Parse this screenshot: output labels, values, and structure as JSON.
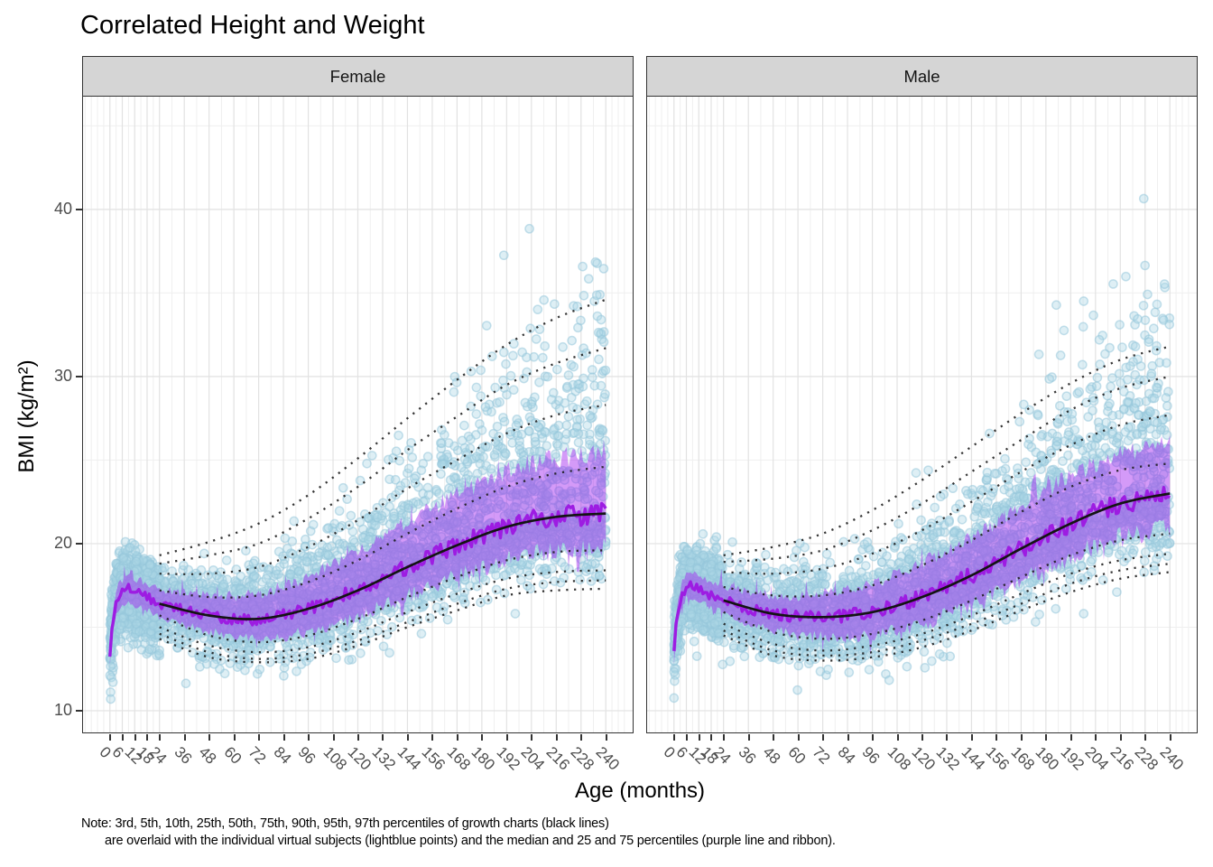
{
  "title": "Correlated Height and Weight",
  "axes": {
    "x_label": "Age (months)",
    "y_label": "BMI (kg/m²)",
    "x_ticks": [
      0,
      6,
      12,
      18,
      24,
      36,
      48,
      60,
      72,
      84,
      96,
      108,
      120,
      132,
      144,
      156,
      168,
      180,
      192,
      204,
      216,
      228,
      240
    ],
    "y_ticks": [
      10,
      20,
      30,
      40
    ]
  },
  "facets": [
    {
      "label": "Female"
    },
    {
      "label": "Male"
    }
  ],
  "note": {
    "line1": "Note: 3rd, 5th, 10th, 25th, 50th, 75th, 90th, 95th, 97th percentiles of growth charts (black lines)",
    "line2": "are overlaid with the individual virtual subjects (lightblue points) and the median and 25 and 75 percentiles (purple line and ribbon)."
  },
  "colors": {
    "scatter_point": "#ADD8E6",
    "ribbon_purple": "#A020F0",
    "median_purple_line": "#9D1CE2",
    "percentile_black": "#1A1A1A",
    "strip_bg": "#D5D5D5",
    "panel_border": "#333333",
    "grid_major": "#E2E2E2",
    "grid_minor": "#EFEFEF",
    "tick_label": "#4D4D4D"
  },
  "chart_data": {
    "type": "scatter",
    "title": "Correlated Height and Weight",
    "xlabel": "Age (months)",
    "ylabel": "BMI (kg/m²)",
    "x_domain": [
      -13,
      253
    ],
    "y_domain": [
      8.7,
      46.75
    ],
    "grid": "on",
    "percentile_ages": [
      24,
      48,
      72,
      96,
      120,
      144,
      168,
      192,
      216,
      240
    ],
    "ribbon_ages": [
      0,
      12,
      24,
      48,
      72,
      96,
      120,
      144,
      168,
      192,
      216,
      240
    ],
    "facets": [
      {
        "name": "Female",
        "growth_chart_percentiles": {
          "P3": [
            14.3,
            13.2,
            12.9,
            13.1,
            13.9,
            15.0,
            16.0,
            16.9,
            17.2,
            17.3
          ],
          "P5": [
            14.6,
            13.5,
            13.1,
            13.4,
            14.2,
            15.3,
            16.4,
            17.3,
            17.7,
            17.8
          ],
          "P10": [
            15.0,
            13.9,
            13.5,
            13.8,
            14.7,
            15.9,
            17.0,
            17.9,
            18.3,
            18.4
          ],
          "P25": [
            15.7,
            14.5,
            14.1,
            14.5,
            15.5,
            16.8,
            18.0,
            19.0,
            19.5,
            19.6
          ],
          "P50": [
            16.4,
            15.7,
            15.5,
            16.1,
            17.2,
            18.6,
            19.9,
            21.0,
            21.6,
            21.8
          ],
          "P75": [
            17.2,
            16.8,
            16.9,
            17.7,
            19.0,
            20.6,
            22.1,
            23.4,
            24.2,
            24.6
          ],
          "P90": [
            18.2,
            18.2,
            18.6,
            19.8,
            21.4,
            23.3,
            25.0,
            26.6,
            27.7,
            28.3
          ],
          "P95": [
            18.8,
            19.3,
            20.0,
            21.5,
            23.4,
            25.6,
            27.6,
            29.5,
            30.8,
            31.7
          ],
          "P97": [
            19.3,
            20.1,
            21.2,
            22.9,
            25.1,
            27.5,
            29.8,
            31.9,
            33.5,
            34.6
          ]
        },
        "data_median_purple": {
          "ages": [
            0,
            1,
            2,
            3,
            4,
            6,
            9,
            12,
            15,
            18,
            24,
            36,
            48,
            60,
            72,
            84,
            96,
            108,
            120,
            132,
            144,
            156,
            168,
            180,
            192,
            204,
            216,
            228,
            240
          ],
          "bmi": [
            13.2,
            14.8,
            15.8,
            16.4,
            16.8,
            17.1,
            17.3,
            17.1,
            16.95,
            16.8,
            16.4,
            16.0,
            15.7,
            15.5,
            15.5,
            15.7,
            16.1,
            16.6,
            17.2,
            17.9,
            18.6,
            19.3,
            19.9,
            20.5,
            21.0,
            21.4,
            21.6,
            21.7,
            21.8
          ]
        },
        "ribbon_halfwidth": {
          "upper": [
            0.6,
            0.8,
            0.9,
            1.2,
            1.5,
            1.9,
            2.3,
            2.7,
            3.0,
            3.3,
            3.5,
            3.6
          ],
          "lower": [
            0.6,
            0.8,
            0.8,
            1.0,
            1.2,
            1.4,
            1.6,
            1.75,
            1.9,
            2.0,
            2.05,
            2.1
          ]
        },
        "scatter_cloud": {
          "n_points": 4200,
          "frac_age_under_24": 0.3,
          "bmi_min": 10.5,
          "envelope_base": 23,
          "envelope_growth_to_240": 23.5,
          "sigma_lower": 1.15,
          "sigma_upper_base": 1.0,
          "sigma_upper_growth": 5.8
        }
      },
      {
        "name": "Male",
        "growth_chart_percentiles": {
          "P3": [
            14.5,
            13.3,
            13.0,
            13.2,
            13.8,
            14.8,
            16.0,
            17.1,
            17.9,
            18.3
          ],
          "P5": [
            14.8,
            13.6,
            13.3,
            13.5,
            14.2,
            15.2,
            16.4,
            17.6,
            18.4,
            18.8
          ],
          "P10": [
            15.2,
            14.0,
            13.6,
            13.9,
            14.6,
            15.7,
            17.0,
            18.2,
            19.0,
            19.4
          ],
          "P25": [
            15.9,
            14.7,
            14.3,
            14.6,
            15.4,
            16.6,
            18.0,
            19.3,
            20.2,
            20.6
          ],
          "P50": [
            16.6,
            15.8,
            15.6,
            15.9,
            16.8,
            18.1,
            19.7,
            21.2,
            22.4,
            23.0
          ],
          "P75": [
            17.4,
            16.9,
            16.9,
            17.5,
            18.7,
            20.2,
            21.9,
            23.4,
            24.4,
            24.8
          ],
          "P90": [
            18.3,
            18.2,
            18.5,
            19.4,
            20.8,
            22.5,
            24.3,
            25.9,
            27.1,
            27.7
          ],
          "P95": [
            18.9,
            19.1,
            19.6,
            20.8,
            22.4,
            24.3,
            26.2,
            28.0,
            29.3,
            30.0
          ],
          "P97": [
            19.3,
            19.8,
            20.6,
            22.0,
            23.8,
            25.8,
            27.8,
            29.6,
            31.0,
            31.8
          ]
        },
        "data_median_purple": {
          "ages": [
            0,
            1,
            2,
            3,
            4,
            6,
            9,
            12,
            15,
            18,
            24,
            36,
            48,
            60,
            72,
            84,
            96,
            108,
            120,
            132,
            144,
            156,
            168,
            180,
            192,
            204,
            216,
            228,
            240
          ],
          "bmi": [
            13.4,
            15.0,
            16.0,
            16.6,
            17.0,
            17.4,
            17.5,
            17.3,
            17.1,
            16.9,
            16.6,
            16.1,
            15.8,
            15.6,
            15.6,
            15.7,
            15.9,
            16.3,
            16.8,
            17.4,
            18.1,
            18.9,
            19.7,
            20.5,
            21.2,
            21.9,
            22.4,
            22.7,
            23.0
          ]
        },
        "ribbon_halfwidth": {
          "upper": [
            0.6,
            0.8,
            0.9,
            1.1,
            1.4,
            1.7,
            2.0,
            2.3,
            2.6,
            2.85,
            3.0,
            3.1
          ],
          "lower": [
            0.6,
            0.8,
            0.8,
            1.0,
            1.2,
            1.4,
            1.6,
            1.75,
            1.9,
            2.0,
            2.05,
            2.1
          ]
        },
        "scatter_cloud": {
          "n_points": 4200,
          "frac_age_under_24": 0.3,
          "bmi_min": 10.5,
          "envelope_base": 23,
          "envelope_growth_to_240": 19.0,
          "sigma_lower": 1.15,
          "sigma_upper_base": 1.0,
          "sigma_upper_growth": 4.8
        }
      }
    ]
  }
}
